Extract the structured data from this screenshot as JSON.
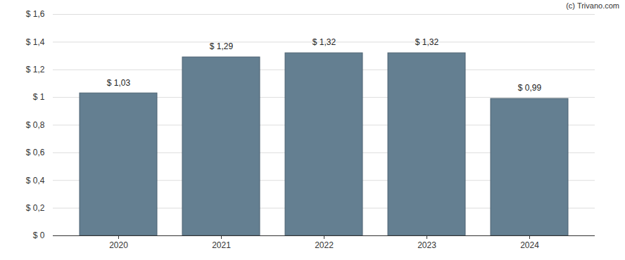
{
  "chart_data": {
    "type": "bar",
    "categories": [
      "2020",
      "2021",
      "2022",
      "2023",
      "2024"
    ],
    "values": [
      1.03,
      1.29,
      1.32,
      1.32,
      0.99
    ],
    "value_labels": [
      "$ 1,03",
      "$ 1,29",
      "$ 1,32",
      "$ 1,32",
      "$ 0,99"
    ],
    "data_labels": true,
    "color": "#647f91",
    "ylim": [
      0,
      1.6
    ],
    "yticks": [
      {
        "value": 0,
        "label": "$ 0"
      },
      {
        "value": 0.2,
        "label": "$ 0,2"
      },
      {
        "value": 0.4,
        "label": "$ 0,4"
      },
      {
        "value": 0.6,
        "label": "$ 0,6"
      },
      {
        "value": 0.8,
        "label": "$ 0,8"
      },
      {
        "value": 1,
        "label": "$ 1"
      },
      {
        "value": 1.2,
        "label": "$ 1,2"
      },
      {
        "value": 1.4,
        "label": "$ 1,4"
      },
      {
        "value": 1.6,
        "label": "$ 1,6"
      }
    ],
    "grid": true,
    "annotations": [
      "(c) Trivano.com"
    ]
  }
}
